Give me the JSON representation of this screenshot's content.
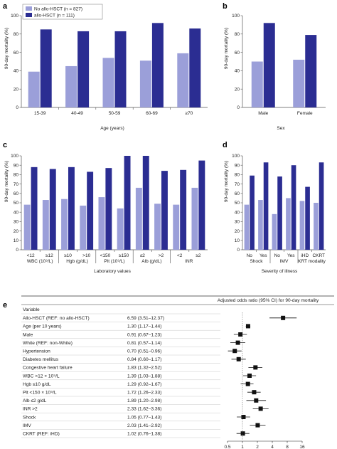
{
  "colors": {
    "no_allo": "#9b9fd9",
    "allo": "#2b2d92",
    "axis": "#555555"
  },
  "legend": {
    "no_allo_label": "No allo-HSCT (n = 827)",
    "allo_label": "allo-HSCT (n = 111)"
  },
  "chart_data": [
    {
      "panel": "a",
      "type": "bar",
      "ylabel": "90-day mortality (%)",
      "xlabel": "Age (years)",
      "ylim": [
        0,
        100
      ],
      "yticks": [
        0,
        20,
        40,
        60,
        80,
        100
      ],
      "categories": [
        "15-39",
        "40-49",
        "50-59",
        "60-69",
        "≥70"
      ],
      "series": [
        {
          "name": "No allo-HSCT",
          "values": [
            39,
            45,
            54,
            51,
            59
          ]
        },
        {
          "name": "allo-HSCT",
          "values": [
            85,
            83,
            83,
            92,
            86
          ]
        }
      ]
    },
    {
      "panel": "b",
      "type": "bar",
      "ylabel": "90-day mortality (%)",
      "xlabel": "Sex",
      "ylim": [
        0,
        100
      ],
      "yticks": [
        0,
        20,
        40,
        60,
        80,
        100
      ],
      "categories": [
        "Male",
        "Female"
      ],
      "series": [
        {
          "name": "No allo-HSCT",
          "values": [
            50,
            52
          ]
        },
        {
          "name": "allo-HSCT",
          "values": [
            92,
            79
          ]
        }
      ]
    },
    {
      "panel": "c",
      "type": "bar",
      "ylabel": "90-day mortality (%)",
      "xlabel": "Laboratory values",
      "ylim": [
        0,
        100
      ],
      "yticks": [
        0,
        10,
        20,
        30,
        40,
        50,
        60,
        70,
        80,
        90,
        100
      ],
      "categories": [
        "<12",
        "≥12",
        "≥10",
        ">10",
        "<150",
        "≥150",
        "≤2",
        ">2",
        "<2",
        "≥2"
      ],
      "groups": [
        "WBC (10⁹/L)",
        "Hgb (g/dL)",
        "Plt (10⁹/L)",
        "Alb (g/dL)",
        "INR"
      ],
      "series": [
        {
          "name": "No allo-HSCT",
          "values": [
            48,
            53,
            54,
            47,
            56,
            44,
            66,
            49,
            48,
            66
          ]
        },
        {
          "name": "allo-HSCT",
          "values": [
            88,
            86,
            88,
            83,
            87,
            100,
            100,
            84,
            85,
            95
          ]
        }
      ]
    },
    {
      "panel": "d",
      "type": "bar",
      "ylabel": "90-day mortality (%)",
      "xlabel": "Severity of illness",
      "ylim": [
        0,
        100
      ],
      "yticks": [
        0,
        10,
        20,
        30,
        40,
        50,
        60,
        70,
        80,
        90,
        100
      ],
      "categories": [
        "No",
        "Yes",
        "No",
        "Yes",
        "iHD",
        "CKRT"
      ],
      "groups": [
        "Shock",
        "IMV",
        "KRT modality"
      ],
      "series": [
        {
          "name": "No allo-HSCT",
          "values": [
            48,
            53,
            38,
            55,
            52,
            50
          ]
        },
        {
          "name": "allo-HSCT",
          "values": [
            79,
            93,
            78,
            90,
            67,
            93
          ]
        }
      ]
    },
    {
      "panel": "e",
      "type": "forest",
      "header": "Adjusted odds ratio (95% CI) for 90-day mortality",
      "variable_header": "Variable",
      "xscale": "log2",
      "xticks": [
        0.5,
        1,
        2,
        4,
        8,
        16
      ],
      "xtick_labels": [
        "0.5",
        "1",
        "2",
        "4",
        "8",
        "16"
      ],
      "rows": [
        {
          "variable": "Allo-HSCT (REF: no allo-HSCT)",
          "text": "6.59 (3.51–12.37)",
          "or": 6.59,
          "lo": 3.51,
          "hi": 12.37
        },
        {
          "variable": "Age (per 10 years)",
          "text": "1.30 (1.17–1.44)",
          "or": 1.3,
          "lo": 1.17,
          "hi": 1.44
        },
        {
          "variable": "Male",
          "text": "0.91 (0.67–1.23)",
          "or": 0.91,
          "lo": 0.67,
          "hi": 1.23
        },
        {
          "variable": "White (REF: non-White)",
          "text": "0.81 (0.57–1.14)",
          "or": 0.81,
          "lo": 0.57,
          "hi": 1.14
        },
        {
          "variable": "Hypertension",
          "text": "0.70 (0.51–0.96)",
          "or": 0.7,
          "lo": 0.51,
          "hi": 0.96
        },
        {
          "variable": "Diabetes mellitus",
          "text": "0.84 (0.60–1.17)",
          "or": 0.84,
          "lo": 0.6,
          "hi": 1.17
        },
        {
          "variable": "Congestive heart failure",
          "text": "1.83 (1.32–2.52)",
          "or": 1.83,
          "lo": 1.32,
          "hi": 2.52
        },
        {
          "variable": "WBC >12 × 10⁹/L",
          "text": "1.39 (1.03–1.88)",
          "or": 1.39,
          "lo": 1.03,
          "hi": 1.88
        },
        {
          "variable": "Hgb ≤10 g/dL",
          "text": "1.29 (0.92–1.67)",
          "or": 1.29,
          "lo": 0.92,
          "hi": 1.67
        },
        {
          "variable": "Plt <150 × 10⁹/L",
          "text": "1.72 (1.26–2.33)",
          "or": 1.72,
          "lo": 1.26,
          "hi": 2.33
        },
        {
          "variable": "Alb ≤2 g/dL",
          "text": "1.89 (1.20–2.98)",
          "or": 1.89,
          "lo": 1.2,
          "hi": 2.98
        },
        {
          "variable": "INR >2",
          "text": "2.33 (1.62–3.36)",
          "or": 2.33,
          "lo": 1.62,
          "hi": 3.36
        },
        {
          "variable": "Shock",
          "text": "1.05 (0.77–1.43)",
          "or": 1.05,
          "lo": 0.77,
          "hi": 1.43
        },
        {
          "variable": "IMV",
          "text": "2.03 (1.41–2.92)",
          "or": 2.03,
          "lo": 1.41,
          "hi": 2.92
        },
        {
          "variable": "CKRT (REF: iHD)",
          "text": "1.02 (0.76–1.38)",
          "or": 1.02,
          "lo": 0.76,
          "hi": 1.38
        }
      ]
    }
  ]
}
